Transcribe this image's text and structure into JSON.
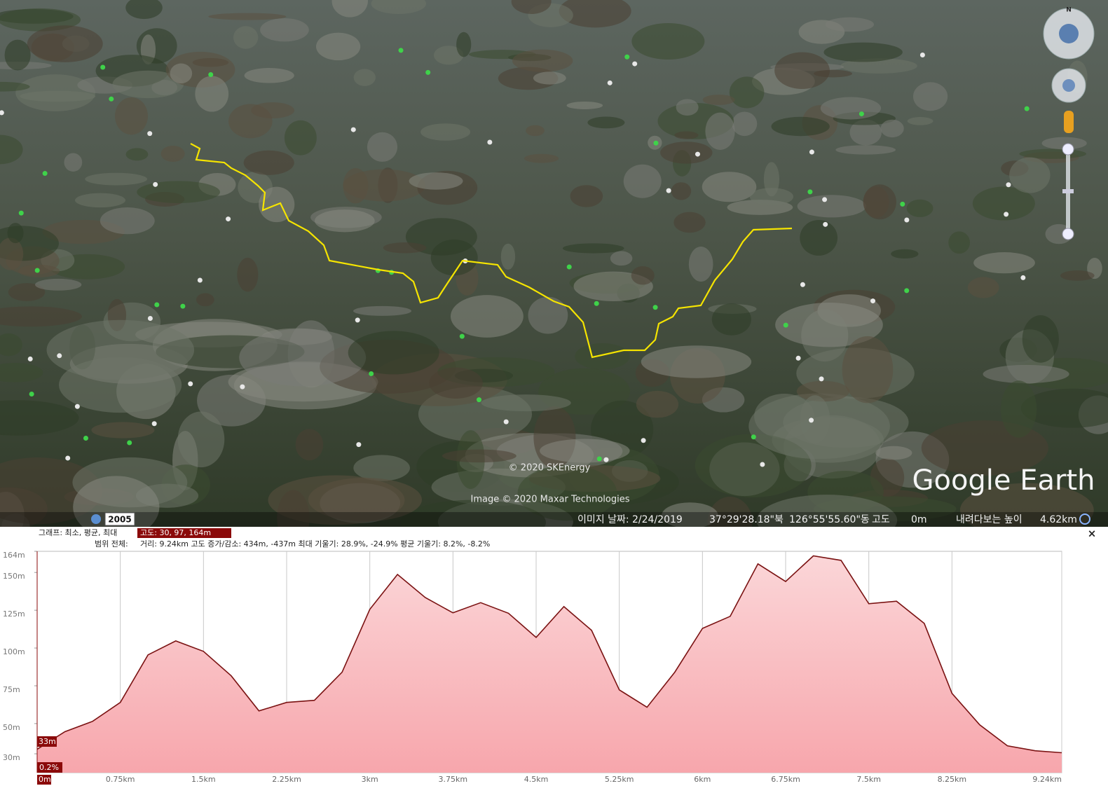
{
  "map": {
    "time_label": "2005",
    "copyright_1": "© 2020 SKEnergy",
    "copyright_2": "Image © 2020 Maxar Technologies",
    "logo": "Google Earth",
    "compass_north": "N"
  },
  "status_bar": {
    "image_date": "이미지 날짜: 2/24/2019",
    "latitude": "37°29'28.18\"북",
    "longitude": "126°55'55.60\"동",
    "elevation_label": "고도",
    "elevation_value": "0m",
    "eye_alt_label": "내려다보는 높이",
    "eye_alt_value": "4.62km"
  },
  "profile_header": {
    "graph_label": "그래프: 최소, 평균, 최대",
    "graph_value": "고도: 30, 97, 164m",
    "range_label": "범위 전체:",
    "range_value": "거리: 9.24km 고도 증가/감소: 434m, -437m 최대 기울기: 28.9%, -24.9% 평균 기울기: 8.2%, -8.2%",
    "close": "×"
  },
  "marker": {
    "elevation": "33m",
    "slope": "0.2%"
  },
  "chart_data": {
    "type": "area",
    "x": [
      0,
      0.25,
      0.5,
      0.75,
      1.0,
      1.25,
      1.5,
      1.75,
      2.0,
      2.25,
      2.5,
      2.75,
      3.0,
      3.25,
      3.5,
      3.75,
      4.0,
      4.25,
      4.5,
      4.75,
      5.0,
      5.25,
      5.5,
      5.75,
      6.0,
      6.25,
      6.5,
      6.75,
      7.0,
      7.25,
      7.5,
      7.75,
      8.0,
      8.25,
      8.5,
      8.75,
      9.0,
      9.24
    ],
    "values": [
      33,
      44.6,
      51.5,
      64,
      95.5,
      104.7,
      97.8,
      81.6,
      58.4,
      64,
      65.4,
      84,
      125.6,
      148.7,
      133.4,
      123.3,
      130,
      123,
      107,
      127.4,
      111.7,
      72.3,
      60.8,
      84,
      113,
      121,
      155.7,
      144,
      161,
      158,
      129.3,
      131,
      116.3,
      70,
      49.2,
      35.3,
      32,
      30.7
    ],
    "color": "#7a1212",
    "xlim": [
      0,
      9.24
    ],
    "ylim": [
      17.5,
      164
    ],
    "xticks": [
      {
        "value": 0,
        "label": "0m"
      },
      {
        "value": 0.75,
        "label": "0.75km"
      },
      {
        "value": 1.5,
        "label": "1.5km"
      },
      {
        "value": 2.25,
        "label": "2.25km"
      },
      {
        "value": 3,
        "label": "3km"
      },
      {
        "value": 3.75,
        "label": "3.75km"
      },
      {
        "value": 4.5,
        "label": "4.5km"
      },
      {
        "value": 5.25,
        "label": "5.25km"
      },
      {
        "value": 6,
        "label": "6km"
      },
      {
        "value": 6.75,
        "label": "6.75km"
      },
      {
        "value": 7.5,
        "label": "7.5km"
      },
      {
        "value": 8.25,
        "label": "8.25km"
      },
      {
        "value": 9.24,
        "label": "9.24km"
      }
    ],
    "yticks": [
      {
        "value": 30,
        "label": "30m"
      },
      {
        "value": 50,
        "label": "50m"
      },
      {
        "value": 75,
        "label": "75m"
      },
      {
        "value": 100,
        "label": "100m"
      },
      {
        "value": 125,
        "label": "125m"
      },
      {
        "value": 150,
        "label": "150m"
      },
      {
        "value": 164,
        "label": "164m"
      }
    ],
    "grid": "x"
  }
}
